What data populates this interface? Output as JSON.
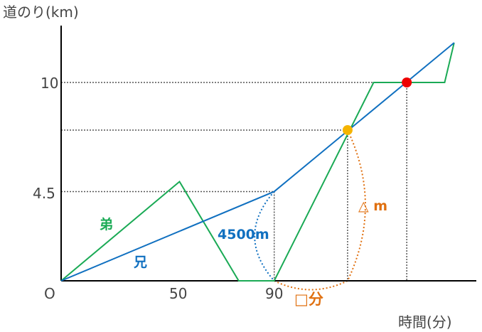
{
  "chart_data": {
    "type": "line",
    "ylabel": "道のり(km)",
    "xlabel": "時間(分)",
    "origin_label": "O",
    "x_ticks": [
      {
        "value": 50,
        "label": "50"
      },
      {
        "value": 90,
        "label": "90"
      }
    ],
    "y_ticks": [
      {
        "value": 4.5,
        "label": "4.5"
      },
      {
        "value": 10,
        "label": "10"
      }
    ],
    "xlim": [
      0,
      176
    ],
    "ylim": [
      0,
      13.5
    ],
    "grid": false,
    "series": [
      {
        "name": "弟",
        "color": "#1aaa55",
        "points": [
          [
            0,
            0
          ],
          [
            50,
            5
          ],
          [
            75,
            0
          ],
          [
            90,
            0
          ],
          [
            132,
            10
          ],
          [
            162,
            10
          ],
          [
            166,
            12
          ]
        ]
      },
      {
        "name": "兄",
        "color": "#1070c0",
        "points": [
          [
            0,
            0
          ],
          [
            90,
            4.5
          ],
          [
            166,
            12
          ]
        ]
      }
    ],
    "markers": [
      {
        "point": [
          121,
          7.6
        ],
        "color": "#f5b400"
      },
      {
        "point": [
          146,
          10
        ],
        "color": "#ee0000"
      }
    ],
    "annotations": {
      "distance_label": "4500m",
      "distance_color": "#1070c0",
      "unknown_distance_label": "△ m",
      "unknown_time_label": "□分",
      "unknown_color": "#e07010"
    }
  }
}
